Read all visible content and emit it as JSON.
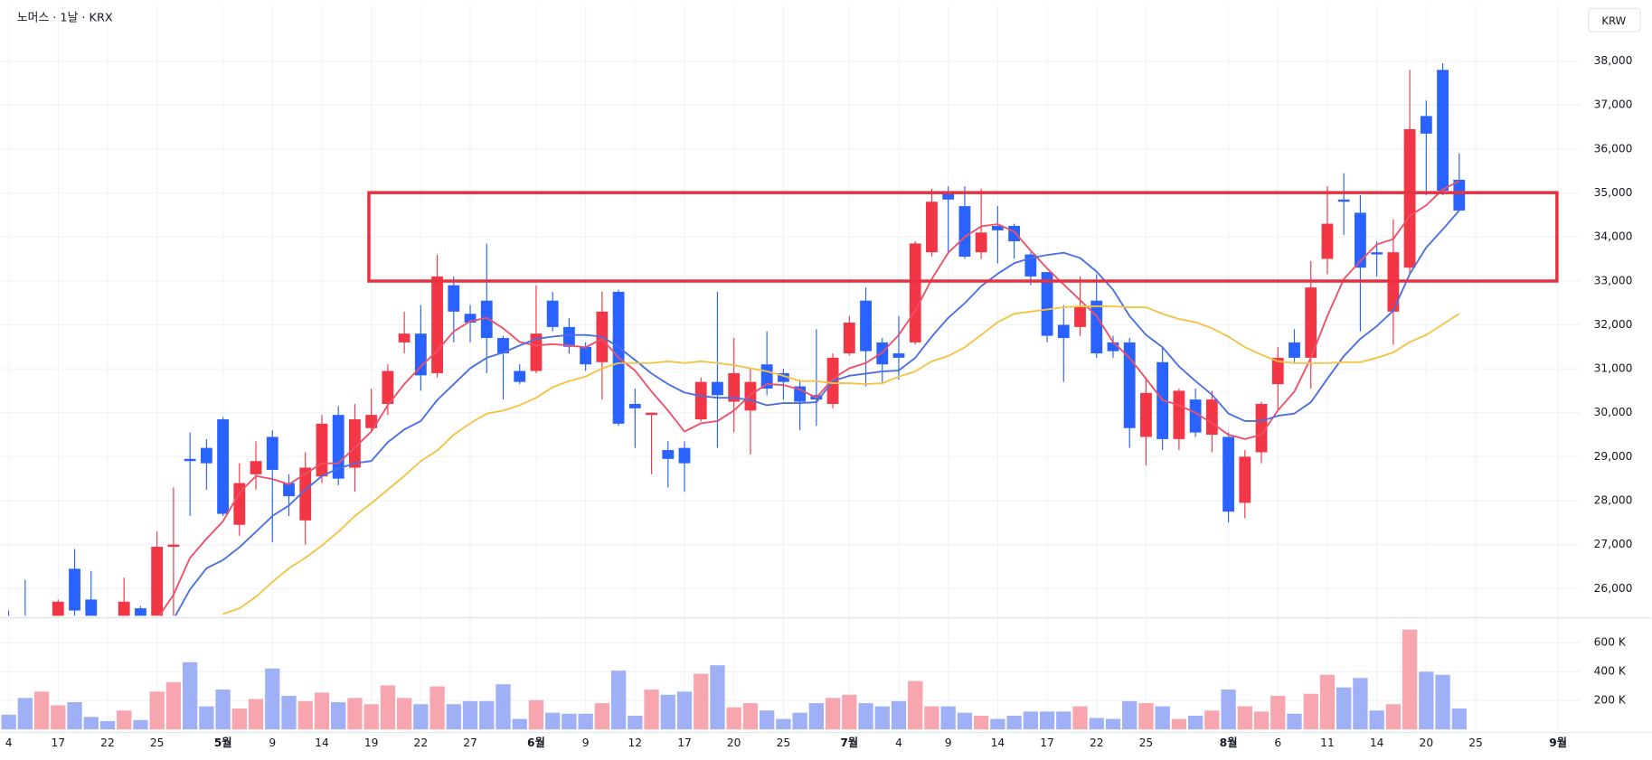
{
  "chart_data": [
    {
      "type": "candlestick",
      "title": "노머스 · 1날 · KRX",
      "currency_label": "KRW",
      "categories": [
        "4",
        null,
        null,
        "17",
        null,
        null,
        "22",
        null,
        null,
        "25",
        null,
        null,
        null,
        "5월",
        null,
        null,
        "9",
        null,
        null,
        "14",
        null,
        null,
        "19",
        null,
        null,
        "22",
        null,
        null,
        "27",
        null,
        null,
        null,
        "6월",
        null,
        null,
        "9",
        null,
        null,
        "12",
        null,
        null,
        "17",
        null,
        null,
        "20",
        null,
        null,
        "25",
        null,
        null,
        null,
        "7월",
        null,
        null,
        "4",
        null,
        null,
        "9",
        null,
        null,
        "14",
        null,
        null,
        "17",
        null,
        null,
        "22",
        null,
        null,
        "25",
        null,
        null,
        null,
        null,
        "8월",
        null,
        null,
        "6",
        null,
        null,
        "11",
        null,
        null,
        "14",
        null,
        null,
        "20",
        null,
        null,
        "25",
        null,
        null,
        null,
        null,
        "9월"
      ],
      "open": [
        25300,
        25300,
        24900,
        25200,
        26450,
        25750,
        25300,
        25000,
        25550,
        25150,
        26950,
        28950,
        29200,
        29850,
        27450,
        28600,
        29450,
        28400,
        27550,
        28550,
        29950,
        28750,
        29650,
        30200,
        31600,
        31800,
        30900,
        32900,
        32250,
        32550,
        31700,
        30950,
        30950,
        32550,
        31950,
        31500,
        31150,
        32750,
        30200,
        29950,
        29150,
        29200,
        29850,
        30700,
        30250,
        30050,
        31100,
        30900,
        30600,
        30400,
        30200,
        31350,
        32550,
        31600,
        31350,
        31600,
        33650,
        35000,
        34700,
        33650,
        34250,
        34250,
        33600,
        33200,
        32000,
        31950,
        32550,
        31600,
        31600,
        29450,
        31150,
        29400,
        30300,
        29500,
        29450,
        27950,
        29100,
        30650,
        31600,
        31250,
        33500,
        34850,
        34550,
        33650,
        32300,
        33300,
        36750,
        37800,
        35300,
        null,
        null,
        null,
        null,
        null,
        null
      ],
      "high": [
        25500,
        26200,
        25300,
        25750,
        26900,
        26400,
        25350,
        26250,
        25600,
        27300,
        28300,
        29550,
        29400,
        29900,
        28850,
        29350,
        29600,
        28600,
        29100,
        29950,
        30150,
        30200,
        30550,
        31100,
        32300,
        32450,
        33600,
        33100,
        32450,
        33850,
        31750,
        31100,
        32900,
        32750,
        32150,
        31600,
        32750,
        32800,
        30550,
        30000,
        29350,
        29350,
        30800,
        32750,
        31700,
        31000,
        31850,
        31000,
        30750,
        31900,
        31350,
        32200,
        32850,
        31700,
        32200,
        33900,
        35100,
        35150,
        35150,
        35100,
        34700,
        34300,
        33650,
        33200,
        32450,
        33100,
        33150,
        31750,
        31700,
        30800,
        31500,
        30550,
        30550,
        30500,
        29550,
        29150,
        30250,
        31500,
        31900,
        33450,
        35150,
        35450,
        34950,
        33900,
        34400,
        37800,
        37100,
        37950,
        35900,
        null,
        null,
        null,
        null,
        null,
        null
      ],
      "low": [
        24800,
        24900,
        24700,
        25100,
        25300,
        25000,
        24900,
        24900,
        25100,
        25000,
        25300,
        27650,
        28250,
        27650,
        27200,
        28250,
        27050,
        27650,
        27000,
        28400,
        28350,
        28200,
        29550,
        29950,
        31350,
        30500,
        30800,
        31600,
        31600,
        30900,
        30300,
        30650,
        30900,
        31850,
        31350,
        30950,
        30300,
        29700,
        29200,
        28600,
        28300,
        28200,
        29800,
        29200,
        29550,
        29050,
        30400,
        30300,
        29600,
        29700,
        30100,
        31300,
        30600,
        30650,
        30750,
        31550,
        33550,
        33650,
        33500,
        33500,
        33400,
        33500,
        32900,
        31600,
        30700,
        31750,
        31250,
        31250,
        29200,
        28800,
        29150,
        29150,
        29450,
        29100,
        27500,
        27600,
        28850,
        30050,
        31150,
        30550,
        33150,
        34050,
        31850,
        33100,
        31550,
        33150,
        34950,
        34950,
        34600,
        null,
        null,
        null,
        null,
        null,
        null
      ],
      "close": [
        25000,
        25100,
        25200,
        25700,
        25500,
        25100,
        25000,
        25700,
        25200,
        26950,
        27000,
        28900,
        28850,
        27700,
        28400,
        28900,
        28700,
        28100,
        28750,
        29750,
        28500,
        29850,
        29950,
        30950,
        31800,
        30850,
        33100,
        32300,
        32050,
        31700,
        31350,
        30700,
        31800,
        31950,
        31500,
        31100,
        32300,
        29750,
        30100,
        30000,
        28950,
        28850,
        30700,
        30400,
        30900,
        30700,
        30550,
        30700,
        30250,
        30300,
        31250,
        32050,
        31400,
        31100,
        31250,
        33850,
        34800,
        34850,
        33550,
        34100,
        34150,
        33900,
        33100,
        31750,
        31700,
        32400,
        31350,
        31400,
        29650,
        30450,
        29400,
        30500,
        29550,
        30300,
        27750,
        29000,
        30200,
        31250,
        31250,
        32850,
        34300,
        34800,
        33300,
        33600,
        33650,
        36450,
        36350,
        35050,
        34600,
        null,
        null,
        null,
        null,
        null,
        null
      ],
      "up_color": "#f23645",
      "down_color": "#2962ff",
      "series": [
        {
          "color": "#ee5067",
          "values": [
            null,
            null,
            null,
            null,
            null,
            null,
            null,
            null,
            null,
            25300,
            25860,
            26700,
            27130,
            27530,
            28180,
            28560,
            28490,
            28370,
            28610,
            28850,
            28850,
            29210,
            29570,
            30170,
            30650,
            31050,
            31410,
            31850,
            32080,
            32160,
            31920,
            31610,
            31530,
            31560,
            31530,
            31490,
            31680,
            31250,
            30960,
            30480,
            30050,
            29570,
            29760,
            29810,
            30050,
            30410,
            30650,
            30630,
            30530,
            30340,
            30770,
            31010,
            31130,
            31370,
            31770,
            32320,
            33040,
            33640,
            34000,
            34240,
            34290,
            34120,
            33690,
            33280,
            32920,
            32560,
            32200,
            31610,
            31250,
            30770,
            30290,
            30170,
            30000,
            29760,
            29500,
            29400,
            29500,
            30050,
            30480,
            31250,
            32200,
            33040,
            33450,
            33830,
            33950,
            34480,
            34720,
            35080,
            35270,
            null,
            null,
            null,
            null,
            null,
            null
          ]
        },
        {
          "color": "#4a6fe3",
          "values": [
            null,
            null,
            null,
            null,
            null,
            null,
            null,
            null,
            null,
            null,
            25300,
            25980,
            26460,
            26650,
            26940,
            27290,
            27650,
            27890,
            28250,
            28560,
            28730,
            28850,
            28900,
            29330,
            29620,
            29810,
            30290,
            30650,
            31010,
            31250,
            31370,
            31530,
            31680,
            31730,
            31770,
            31770,
            31730,
            31490,
            31200,
            30890,
            30650,
            30460,
            30380,
            30340,
            30340,
            30290,
            30170,
            30220,
            30220,
            30240,
            30720,
            30840,
            30890,
            30940,
            30960,
            31250,
            31730,
            32160,
            32490,
            32880,
            33160,
            33400,
            33520,
            33590,
            33640,
            33520,
            33210,
            32800,
            32200,
            31770,
            31490,
            31050,
            30720,
            30410,
            29980,
            29810,
            29810,
            29930,
            29980,
            30240,
            30770,
            31290,
            31680,
            31970,
            32320,
            33160,
            33760,
            34170,
            34600,
            null,
            null,
            null,
            null,
            null,
            null
          ]
        },
        {
          "color": "#f5c343",
          "values": [
            null,
            null,
            null,
            null,
            null,
            null,
            null,
            null,
            null,
            null,
            null,
            null,
            null,
            25420,
            25550,
            25810,
            26150,
            26460,
            26700,
            26980,
            27290,
            27650,
            27940,
            28250,
            28560,
            28900,
            29140,
            29500,
            29760,
            29980,
            30050,
            30170,
            30340,
            30580,
            30720,
            30820,
            31010,
            31130,
            31130,
            31130,
            31170,
            31130,
            31170,
            31130,
            31080,
            31010,
            30940,
            30840,
            30720,
            30720,
            30670,
            30670,
            30650,
            30670,
            30820,
            30940,
            31170,
            31290,
            31490,
            31770,
            32060,
            32250,
            32300,
            32350,
            32400,
            32420,
            32420,
            32420,
            32400,
            32400,
            32250,
            32130,
            32060,
            31920,
            31730,
            31490,
            31320,
            31170,
            31130,
            31130,
            31130,
            31150,
            31150,
            31250,
            31370,
            31610,
            31770,
            32010,
            32250,
            null,
            null,
            null,
            null,
            null,
            null
          ]
        }
      ],
      "ylim": [
        25380,
        39270
      ],
      "yticks": [
        {
          "value": 26000,
          "label": "26,000"
        },
        {
          "value": 27000,
          "label": "27,000"
        },
        {
          "value": 28000,
          "label": "28,000"
        },
        {
          "value": 29000,
          "label": "29,000"
        },
        {
          "value": 30000,
          "label": "30,000"
        },
        {
          "value": 31000,
          "label": "31,000"
        },
        {
          "value": 32000,
          "label": "32,000"
        },
        {
          "value": 33000,
          "label": "33,000"
        },
        {
          "value": 34000,
          "label": "34,000"
        },
        {
          "value": 35000,
          "label": "35,000"
        },
        {
          "value": 36000,
          "label": "36,000"
        },
        {
          "value": 37000,
          "label": "37,000"
        },
        {
          "value": 38000,
          "label": "38,000"
        }
      ],
      "grid": true
    },
    {
      "type": "volume",
      "values": [
        102000,
        218000,
        262000,
        167000,
        189000,
        87000,
        58000,
        131000,
        65000,
        262000,
        327000,
        465000,
        160000,
        276000,
        145000,
        211000,
        422000,
        233000,
        196000,
        255000,
        189000,
        218000,
        175000,
        305000,
        218000,
        175000,
        298000,
        175000,
        196000,
        196000,
        313000,
        73000,
        204000,
        116000,
        109000,
        109000,
        182000,
        407000,
        95000,
        276000,
        240000,
        262000,
        385000,
        444000,
        153000,
        182000,
        131000,
        73000,
        116000,
        182000,
        218000,
        240000,
        182000,
        160000,
        196000,
        335000,
        160000,
        160000,
        116000,
        95000,
        73000,
        95000,
        124000,
        124000,
        124000,
        160000,
        80000,
        73000,
        196000,
        182000,
        160000,
        73000,
        95000,
        131000,
        276000,
        160000,
        124000,
        233000,
        109000,
        247000,
        378000,
        291000,
        356000,
        131000,
        175000,
        691000,
        400000,
        378000,
        145000,
        null,
        null,
        null,
        null,
        null,
        null
      ],
      "up_color": "#f7a6b0",
      "down_color": "#9fb0f6",
      "ylim": [
        0,
        750000
      ],
      "yticks": [
        {
          "value": 200000,
          "label": "200 K"
        },
        {
          "value": 400000,
          "label": "400 K"
        },
        {
          "value": 600000,
          "label": "600 K"
        }
      ],
      "grid": true
    }
  ]
}
